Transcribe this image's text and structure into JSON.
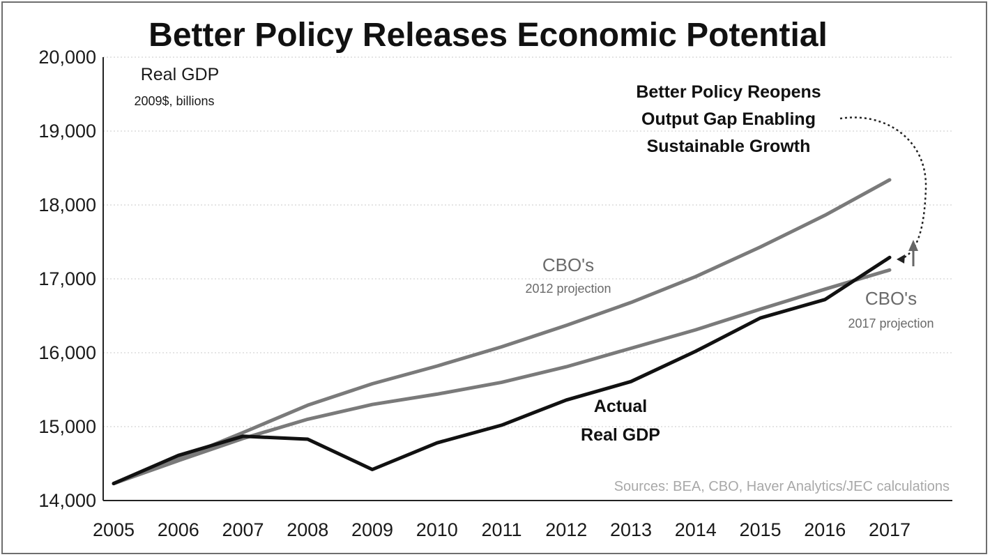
{
  "chart_data": {
    "type": "line",
    "title": "Better Policy Releases Economic Potential",
    "unit_label": "Real GDP",
    "unit_sublabel": "2009$, billions",
    "x": [
      2005,
      2006,
      2007,
      2008,
      2009,
      2010,
      2011,
      2012,
      2013,
      2014,
      2015,
      2016,
      2017
    ],
    "x_ticks": [
      "2005",
      "2006",
      "2007",
      "2008",
      "2009",
      "2010",
      "2011",
      "2012",
      "2013",
      "2014",
      "2015",
      "2016",
      "2017"
    ],
    "ylim": [
      14000,
      20000
    ],
    "y_ticks": [
      "14,000",
      "15,000",
      "16,000",
      "17,000",
      "18,000",
      "19,000",
      "20,000"
    ],
    "y_tick_values": [
      14000,
      15000,
      16000,
      17000,
      18000,
      19000,
      20000
    ],
    "grid": "horizontal dotted",
    "series": [
      {
        "name": "CBO's 2012 projection",
        "color": "#7a7a7a",
        "values": [
          14230,
          14560,
          14920,
          15290,
          15580,
          15820,
          16080,
          16370,
          16680,
          17030,
          17430,
          17860,
          18340
        ]
      },
      {
        "name": "CBO's 2017 projection",
        "color": "#7a7a7a",
        "values": [
          14230,
          14540,
          14840,
          15100,
          15300,
          15440,
          15600,
          15810,
          16060,
          16310,
          16590,
          16860,
          17120
        ]
      },
      {
        "name": "Actual Real GDP",
        "color": "#111111",
        "values": [
          14230,
          14610,
          14870,
          14830,
          14420,
          14780,
          15020,
          15360,
          15610,
          16020,
          16470,
          16720,
          17290
        ]
      }
    ],
    "annotations": {
      "gap_line1": "Better Policy Reopens",
      "gap_line2": "Output Gap Enabling",
      "gap_line3": "Sustainable Growth",
      "cbo2012_line1": "CBO's",
      "cbo2012_line2": "2012 projection",
      "cbo2017_line1": "CBO's",
      "cbo2017_line2": "2017 projection",
      "actual_line1": "Actual",
      "actual_line2": "Real GDP",
      "sources": "Sources: BEA, CBO, Haver Analytics/JEC calculations"
    }
  }
}
